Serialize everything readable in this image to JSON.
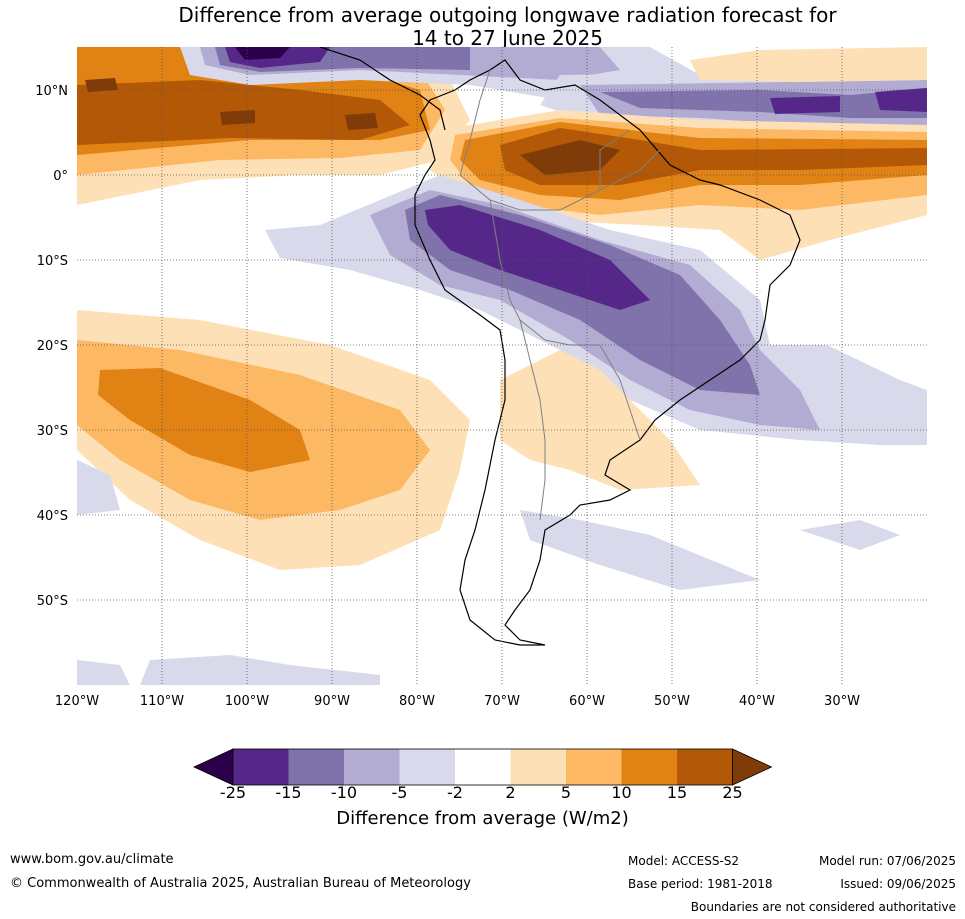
{
  "title": {
    "line1": "Difference from average outgoing longwave radiation forecast for",
    "line2": "14 to 27 June 2025"
  },
  "map": {
    "lat_labels": [
      "10°N",
      "0°",
      "10°S",
      "20°S",
      "30°S",
      "40°S",
      "50°S"
    ],
    "lon_labels": [
      "120°W",
      "110°W",
      "100°W",
      "90°W",
      "80°W",
      "70°W",
      "60°W",
      "50°W",
      "40°W",
      "30°W"
    ],
    "grid": "dotted",
    "palette": {
      "p25": "#2d004b",
      "p15": "#542788",
      "p10": "#8073ac",
      "p5": "#b2abd2",
      "p2": "#d8daeb",
      "zero": "#ffffff",
      "o2": "#fee0b6",
      "o5": "#fdb863",
      "o10": "#e08214",
      "o15": "#b35806",
      "o25": "#7f3b08"
    }
  },
  "colorbar": {
    "ticks": [
      "-25",
      "-15",
      "-10",
      "-5",
      "-2",
      "2",
      "5",
      "10",
      "15",
      "25"
    ],
    "colors": [
      "#542788",
      "#8073ac",
      "#b2abd2",
      "#d8daeb",
      "#ffffff",
      "#fee0b6",
      "#fdb863",
      "#e08214",
      "#b35806"
    ],
    "under_color": "#2d004b",
    "over_color": "#7f3b08",
    "label": "Difference from average (W/m2)"
  },
  "footer": {
    "website": "www.bom.gov.au/climate",
    "copyright": "© Commonwealth of Australia 2025, Australian Bureau of Meteorology",
    "model": "Model: ACCESS-S2",
    "base_period": "Base period: 1981-2018",
    "model_run": "Model run: 07/06/2025",
    "issued": "Issued: 09/06/2025",
    "disclaimer": "Boundaries are not considered authoritative"
  }
}
